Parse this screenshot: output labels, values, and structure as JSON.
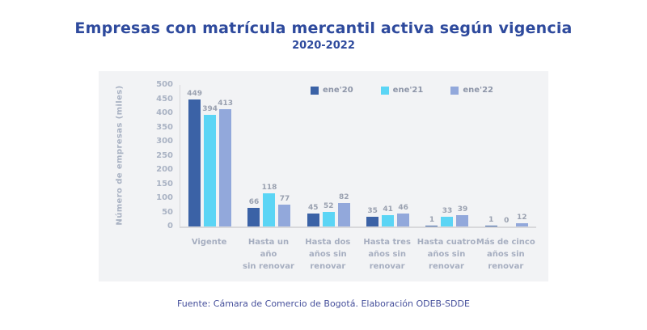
{
  "header": {
    "title": "Empresas con matrícula mercantil activa según vigencia",
    "subtitle": "2020-2022"
  },
  "footer": {
    "source": "Fuente: Cámara de Comercio de Bogotá. Elaboración ODEB-SDDE"
  },
  "colors": {
    "title": "#2e4a9d",
    "panel_background": "#f2f3f5",
    "axis_line": "#d8d8db",
    "tick_label": "#aab3c4",
    "data_label": "#9aa1b0",
    "footer_text": "#454f9b",
    "series_ene20": "#3b62a6",
    "series_ene21": "#5bd5f5",
    "series_ene22": "#92a8db"
  },
  "chart_data": {
    "type": "bar",
    "title": "Empresas con matrícula mercantil activa según vigencia",
    "subtitle": "2020-2022",
    "xlabel": "",
    "ylabel": "Número de empresas (miles)",
    "ylim": [
      0,
      500
    ],
    "yticks": [
      500,
      450,
      400,
      350,
      300,
      250,
      200,
      150,
      100,
      50,
      0
    ],
    "grid": false,
    "legend_position": "top-center",
    "categories": [
      "Vigente",
      "Hasta un año\nsin renovar",
      "Hasta dos\naños sin\nrenovar",
      "Hasta tres\naños sin\nrenovar",
      "Hasta cuatro\naños sin\nrenovar",
      "Más de cinco\naños sin\nrenovar"
    ],
    "series": [
      {
        "name": "ene'20",
        "color": "#3b62a6",
        "values": [
          449,
          66,
          45,
          35,
          1,
          1
        ]
      },
      {
        "name": "ene'21",
        "color": "#5bd5f5",
        "values": [
          394,
          118,
          52,
          41,
          33,
          0
        ]
      },
      {
        "name": "ene'22",
        "color": "#92a8db",
        "values": [
          413,
          77,
          82,
          46,
          39,
          12
        ]
      }
    ]
  }
}
